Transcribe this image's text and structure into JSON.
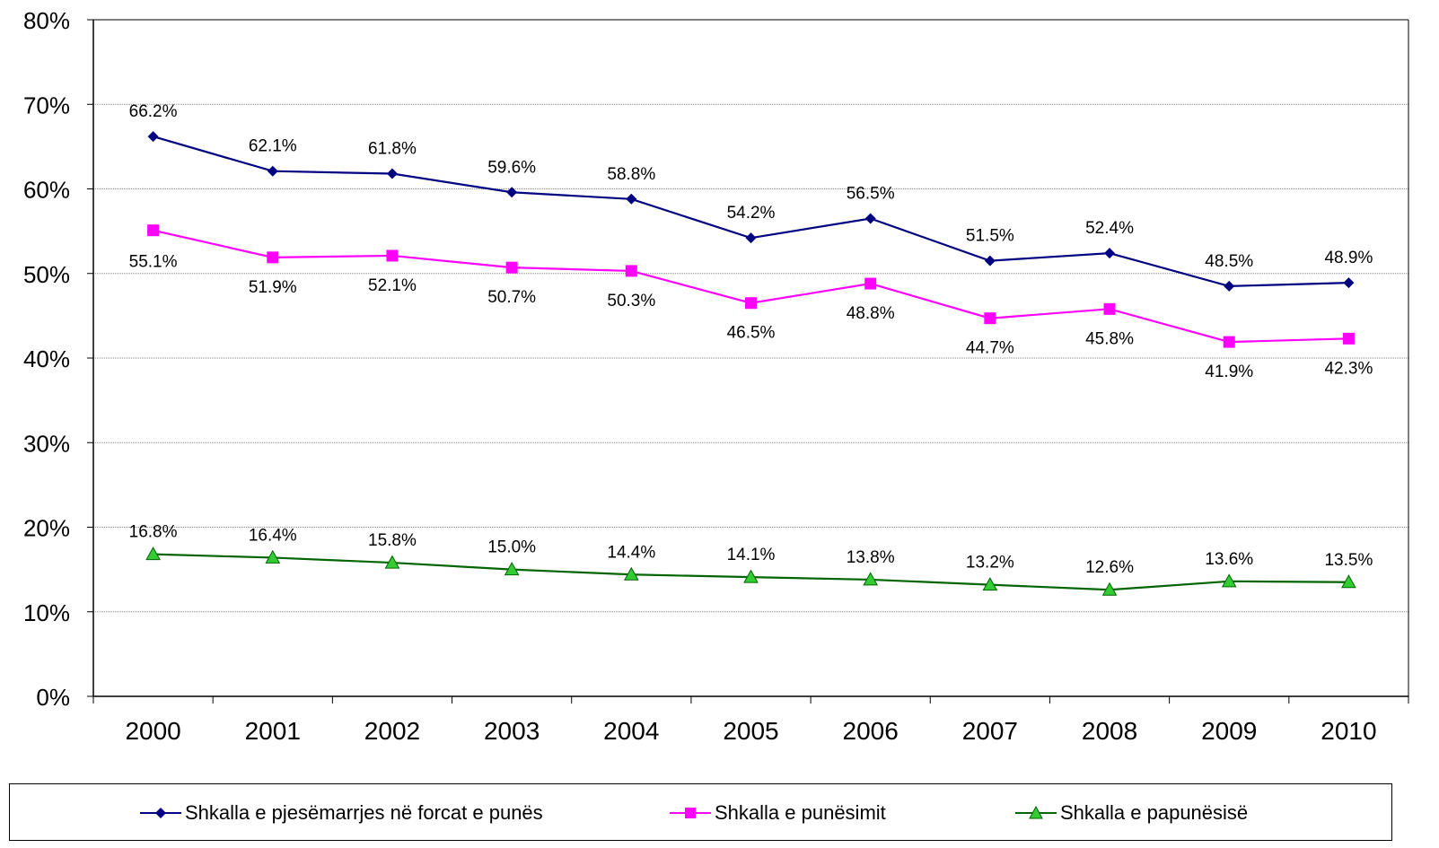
{
  "chart_data": {
    "type": "line",
    "title": "",
    "xlabel": "",
    "ylabel": "",
    "ylim": [
      0,
      80
    ],
    "y_ticks": [
      "0%",
      "10%",
      "20%",
      "30%",
      "40%",
      "50%",
      "60%",
      "70%",
      "80%"
    ],
    "grid": true,
    "legend_position": "bottom",
    "categories": [
      "2000",
      "2001",
      "2002",
      "2003",
      "2004",
      "2005",
      "2006",
      "2007",
      "2008",
      "2009",
      "2010"
    ],
    "series": [
      {
        "name": "Shkalla e pjesëmarrjes në forcat e punës",
        "color": "#000080",
        "marker": "diamond",
        "values": [
          66.2,
          62.1,
          61.8,
          59.6,
          58.8,
          54.2,
          56.5,
          51.5,
          52.4,
          48.5,
          48.9
        ],
        "labels": [
          "66.2%",
          "62.1%",
          "61.8%",
          "59.6%",
          "58.8%",
          "54.2%",
          "56.5%",
          "51.5%",
          "52.4%",
          "48.5%",
          "48.9%"
        ]
      },
      {
        "name": "Shkalla e punësimit",
        "color": "#FF00FF",
        "marker": "square",
        "values": [
          55.1,
          51.9,
          52.1,
          50.7,
          50.3,
          46.5,
          48.8,
          44.7,
          45.8,
          41.9,
          42.3
        ],
        "labels": [
          "55.1%",
          "51.9%",
          "52.1%",
          "50.7%",
          "50.3%",
          "46.5%",
          "48.8%",
          "44.7%",
          "45.8%",
          "41.9%",
          "42.3%"
        ]
      },
      {
        "name": "Shkalla e papunësisë",
        "color": "#006400",
        "marker_fill": "#33CC33",
        "marker": "triangle",
        "values": [
          16.8,
          16.4,
          15.8,
          15.0,
          14.4,
          14.1,
          13.8,
          13.2,
          12.6,
          13.6,
          13.5
        ],
        "labels": [
          "16.8%",
          "16.4%",
          "15.8%",
          "15.0%",
          "14.4%",
          "14.1%",
          "13.8%",
          "13.2%",
          "12.6%",
          "13.6%",
          "13.5%"
        ]
      }
    ]
  }
}
